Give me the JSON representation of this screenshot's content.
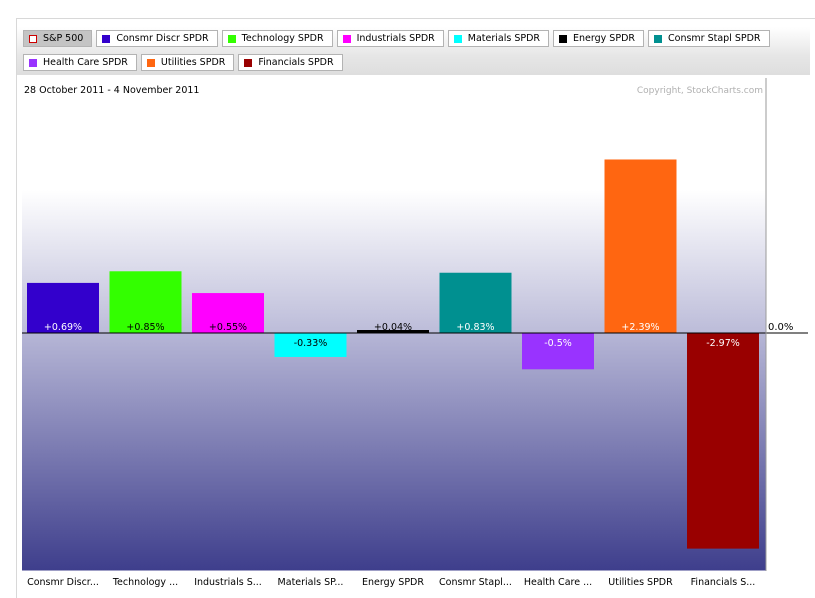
{
  "legend": {
    "items": [
      {
        "label": "S&P 500",
        "color": "#cc0000",
        "style": "hollow",
        "active": true
      },
      {
        "label": "Consmr Discr SPDR",
        "color": "#3300cc"
      },
      {
        "label": "Technology SPDR",
        "color": "#33ff00"
      },
      {
        "label": "Industrials SPDR",
        "color": "#ff00ff"
      },
      {
        "label": "Materials SPDR",
        "color": "#00ffff"
      },
      {
        "label": "Energy SPDR",
        "color": "#000000"
      },
      {
        "label": "Consmr Stapl SPDR",
        "color": "#009090"
      },
      {
        "label": "Health Care SPDR",
        "color": "#9933ff"
      },
      {
        "label": "Utilities SPDR",
        "color": "#ff6611"
      },
      {
        "label": "Financials SPDR",
        "color": "#990000"
      }
    ]
  },
  "header": {
    "date_range": "28 October 2011 - 4 November 2011",
    "copyright": "Copyright, StockCharts.com"
  },
  "chart_data": {
    "type": "bar",
    "title": "",
    "xlabel": "",
    "ylabel": "",
    "zero_label": "0.0%",
    "grid": false,
    "categories": [
      "Consmr Discr...",
      "Technology ...",
      "Industrials S...",
      "Materials SP...",
      "Energy SPDR",
      "Consmr Stapl...",
      "Health Care ...",
      "Utilities SPDR",
      "Financials S..."
    ],
    "values": [
      0.69,
      0.85,
      0.55,
      -0.33,
      0.04,
      0.83,
      -0.5,
      2.39,
      -2.97
    ],
    "value_labels": [
      "+0.69%",
      "+0.85%",
      "+0.55%",
      "-0.33%",
      "+0.04%",
      "+0.83%",
      "-0.5%",
      "+2.39%",
      "-2.97%"
    ],
    "colors": [
      "#3300cc",
      "#33ff00",
      "#ff00ff",
      "#00ffff",
      "#000000",
      "#009090",
      "#9933ff",
      "#ff6611",
      "#990000"
    ],
    "label_colors": [
      "#ffffff",
      "#000000",
      "#000000",
      "#000000",
      "#000000",
      "#ffffff",
      "#ffffff",
      "#ffffff",
      "#ffffff"
    ]
  }
}
